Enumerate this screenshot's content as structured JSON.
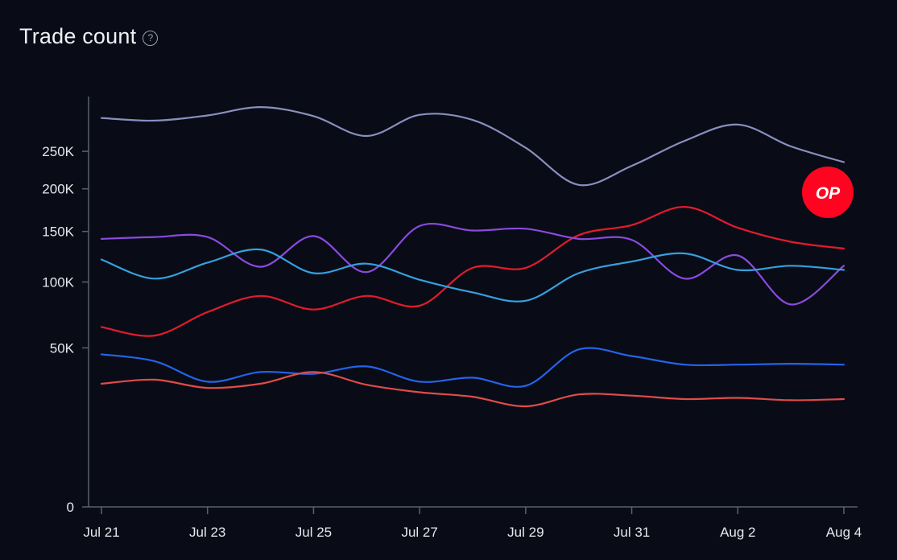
{
  "header": {
    "title": "Trade count",
    "help_icon": "question-circle-icon"
  },
  "chart_data": {
    "type": "line",
    "title": "Trade count",
    "x": [
      "Jul 21",
      "Jul 22",
      "Jul 23",
      "Jul 24",
      "Jul 25",
      "Jul 26",
      "Jul 27",
      "Jul 28",
      "Jul 29",
      "Jul 30",
      "Jul 31",
      "Aug 1",
      "Aug 2",
      "Aug 3",
      "Aug 4"
    ],
    "x_tick_labels": [
      "Jul 21",
      "Jul 23",
      "Jul 25",
      "Jul 27",
      "Jul 29",
      "Jul 31",
      "Aug 2",
      "Aug 4"
    ],
    "y_tick_values": [
      0,
      50000,
      100000,
      150000,
      200000,
      250000
    ],
    "y_tick_labels": [
      "0",
      "50K",
      "100K",
      "150K",
      "200K",
      "250K"
    ],
    "y_scale": "sqrt",
    "ylim": [
      0,
      320000
    ],
    "grid": false,
    "legend": "none",
    "series": [
      {
        "name": "series-lavender",
        "color": "#8a8fc0",
        "values": [
          299000,
          295000,
          303000,
          316000,
          302000,
          272000,
          304000,
          296000,
          255000,
          205000,
          230000,
          265000,
          289000,
          257000,
          235000
        ]
      },
      {
        "name": "series-red",
        "color": "#e31b2e",
        "values": [
          64000,
          58000,
          75000,
          88000,
          77000,
          88000,
          80000,
          113000,
          113000,
          146000,
          157000,
          178000,
          154000,
          139000,
          132000
        ]
      },
      {
        "name": "series-purple",
        "color": "#8b4ae0",
        "values": [
          142000,
          144000,
          144000,
          114000,
          145000,
          109000,
          156000,
          151000,
          153000,
          142000,
          141000,
          103000,
          125000,
          81000,
          115000
        ]
      },
      {
        "name": "series-sky-blue",
        "color": "#35a0e0",
        "values": [
          121000,
          103000,
          118000,
          131000,
          108000,
          117000,
          102000,
          91000,
          84000,
          108000,
          119000,
          127000,
          111000,
          115000,
          111000
        ]
      },
      {
        "name": "series-blue",
        "color": "#2563eb",
        "values": [
          46000,
          42000,
          31000,
          36000,
          35000,
          39000,
          31000,
          33000,
          29000,
          49000,
          45000,
          40000,
          40000,
          40500,
          40000
        ]
      },
      {
        "name": "series-coral",
        "color": "#e14b4b",
        "values": [
          30000,
          32000,
          28000,
          30000,
          36000,
          29500,
          26000,
          24000,
          20000,
          25000,
          24500,
          23000,
          23500,
          22500,
          23000
        ]
      }
    ],
    "badge": {
      "label": "OP",
      "color": "#ff0420"
    }
  }
}
